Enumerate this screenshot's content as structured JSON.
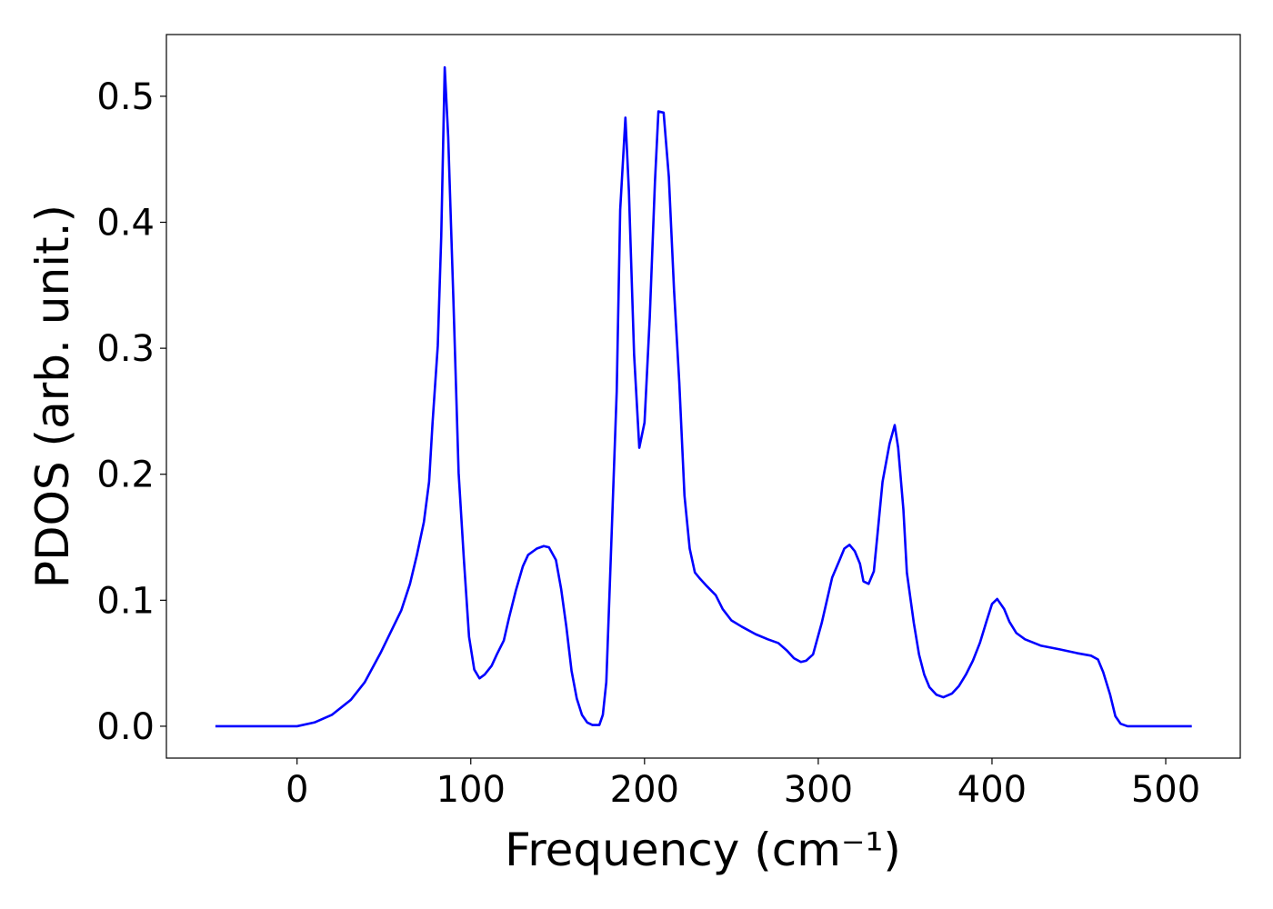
{
  "chart_data": {
    "type": "line",
    "xlabel": "Frequency (cm⁻¹)",
    "ylabel": "PDOS (arb. unit.)",
    "xlim": [
      -75.2,
      542.9
    ],
    "ylim": [
      -0.0253,
      0.549
    ],
    "xticks": [
      0,
      100,
      200,
      300,
      400,
      500
    ],
    "yticks": [
      {
        "value": 0,
        "label": "0.0"
      },
      0.1,
      0.2,
      0.3,
      0.4,
      0.5
    ],
    "series": [
      {
        "color": "#0000ff",
        "x": [
          -47,
          0,
          10,
          20,
          31,
          39,
          48,
          60,
          65,
          69,
          73,
          76,
          78,
          81,
          83,
          85,
          87,
          90,
          93,
          96,
          99,
          102,
          105,
          108,
          112,
          115,
          119,
          122,
          126,
          130,
          133,
          138,
          142,
          145,
          149,
          152,
          155,
          158,
          161,
          164,
          167,
          170,
          174,
          176,
          178,
          180,
          184,
          186,
          189,
          191,
          194,
          197,
          200,
          203,
          206,
          208,
          211,
          214,
          217,
          220,
          223,
          226,
          229,
          232,
          236,
          241,
          245,
          250,
          256,
          264,
          271,
          277,
          282,
          286,
          290,
          293,
          297,
          299,
          302,
          305,
          308,
          312,
          315,
          318,
          321,
          324,
          326,
          329,
          332,
          334,
          337,
          341,
          344,
          346,
          349,
          351,
          355,
          358,
          361,
          364,
          368,
          372,
          377,
          381,
          385,
          389,
          393,
          397,
          400,
          403,
          407,
          410,
          414,
          419,
          428,
          439,
          449,
          457,
          461,
          464,
          468,
          471,
          474,
          478,
          515
        ],
        "values": [
          0,
          0,
          0.003,
          0.009,
          0.021,
          0.035,
          0.058,
          0.092,
          0.113,
          0.136,
          0.162,
          0.194,
          0.241,
          0.302,
          0.389,
          0.523,
          0.468,
          0.338,
          0.201,
          0.133,
          0.071,
          0.045,
          0.038,
          0.041,
          0.048,
          0.057,
          0.068,
          0.086,
          0.108,
          0.127,
          0.136,
          0.141,
          0.143,
          0.142,
          0.132,
          0.109,
          0.079,
          0.044,
          0.022,
          0.009,
          0.003,
          0.001,
          0.001,
          0.009,
          0.035,
          0.111,
          0.266,
          0.41,
          0.483,
          0.425,
          0.295,
          0.221,
          0.241,
          0.324,
          0.432,
          0.488,
          0.487,
          0.436,
          0.346,
          0.273,
          0.183,
          0.141,
          0.122,
          0.117,
          0.111,
          0.104,
          0.093,
          0.084,
          0.079,
          0.073,
          0.069,
          0.066,
          0.06,
          0.054,
          0.051,
          0.052,
          0.057,
          0.067,
          0.082,
          0.1,
          0.118,
          0.131,
          0.141,
          0.144,
          0.139,
          0.129,
          0.115,
          0.113,
          0.123,
          0.151,
          0.194,
          0.224,
          0.239,
          0.221,
          0.172,
          0.122,
          0.082,
          0.057,
          0.041,
          0.031,
          0.025,
          0.023,
          0.026,
          0.032,
          0.041,
          0.052,
          0.066,
          0.084,
          0.097,
          0.101,
          0.093,
          0.083,
          0.074,
          0.069,
          0.064,
          0.061,
          0.058,
          0.056,
          0.053,
          0.043,
          0.025,
          0.008,
          0.002,
          0,
          0
        ]
      }
    ]
  }
}
